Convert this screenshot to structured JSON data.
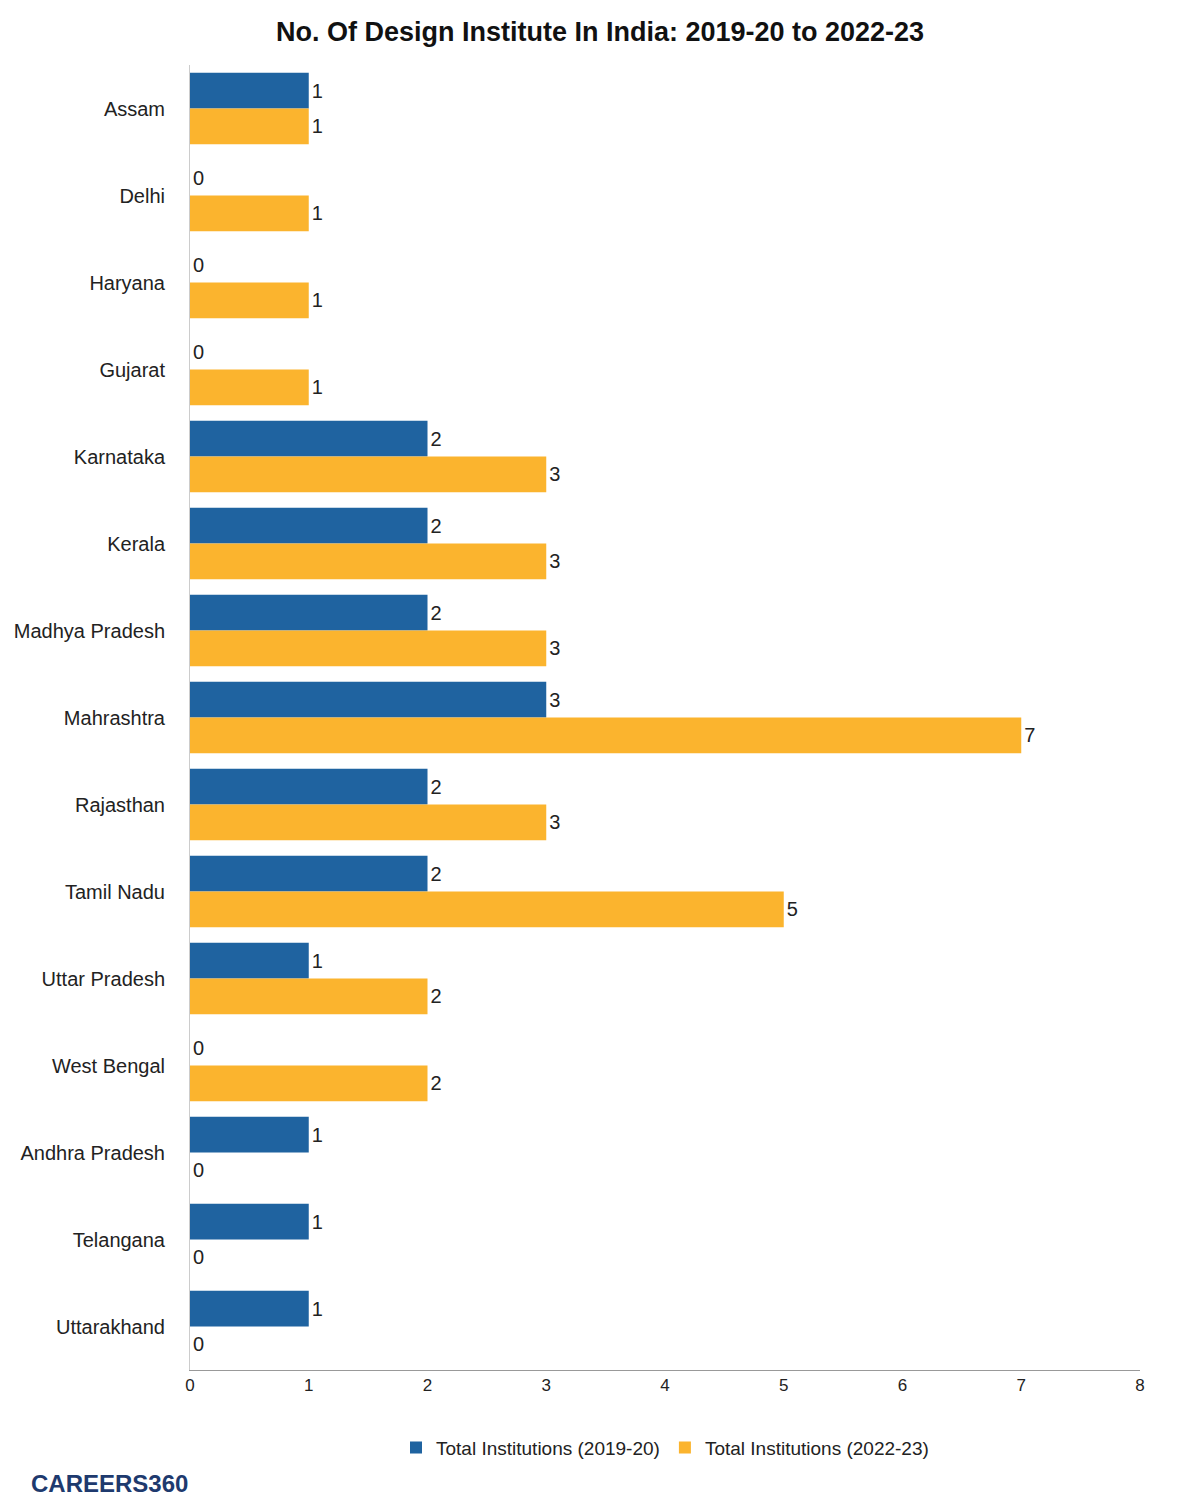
{
  "chart_data": {
    "type": "bar",
    "title": "No. Of Design Institute In India: 2019-20 to 2022-23",
    "orientation": "horizontal",
    "categories": [
      "Assam",
      "Delhi",
      "Haryana",
      "Gujarat",
      "Karnataka",
      "Kerala",
      "Madhya Pradesh",
      "Mahrashtra",
      "Rajasthan",
      "Tamil Nadu",
      "Uttar Pradesh",
      "West Bengal",
      "Andhra Pradesh",
      "Telangana",
      "Uttarakhand"
    ],
    "series": [
      {
        "name": "Total Institutions (2019-20)",
        "color": "#1f63a0",
        "values": [
          1,
          0,
          0,
          0,
          2,
          2,
          2,
          3,
          2,
          2,
          1,
          0,
          1,
          1,
          1
        ]
      },
      {
        "name": "Total Institutions (2022-23)",
        "color": "#fbb42e",
        "values": [
          1,
          1,
          1,
          1,
          3,
          3,
          3,
          7,
          3,
          5,
          2,
          2,
          0,
          0,
          0
        ]
      }
    ],
    "xlim": [
      0,
      8
    ],
    "xticks": [
      0,
      1,
      2,
      3,
      4,
      5,
      6,
      7,
      8
    ],
    "grid": false,
    "legend": "bottom",
    "data_labels": true,
    "annotations": [
      "CAREERS360"
    ]
  }
}
